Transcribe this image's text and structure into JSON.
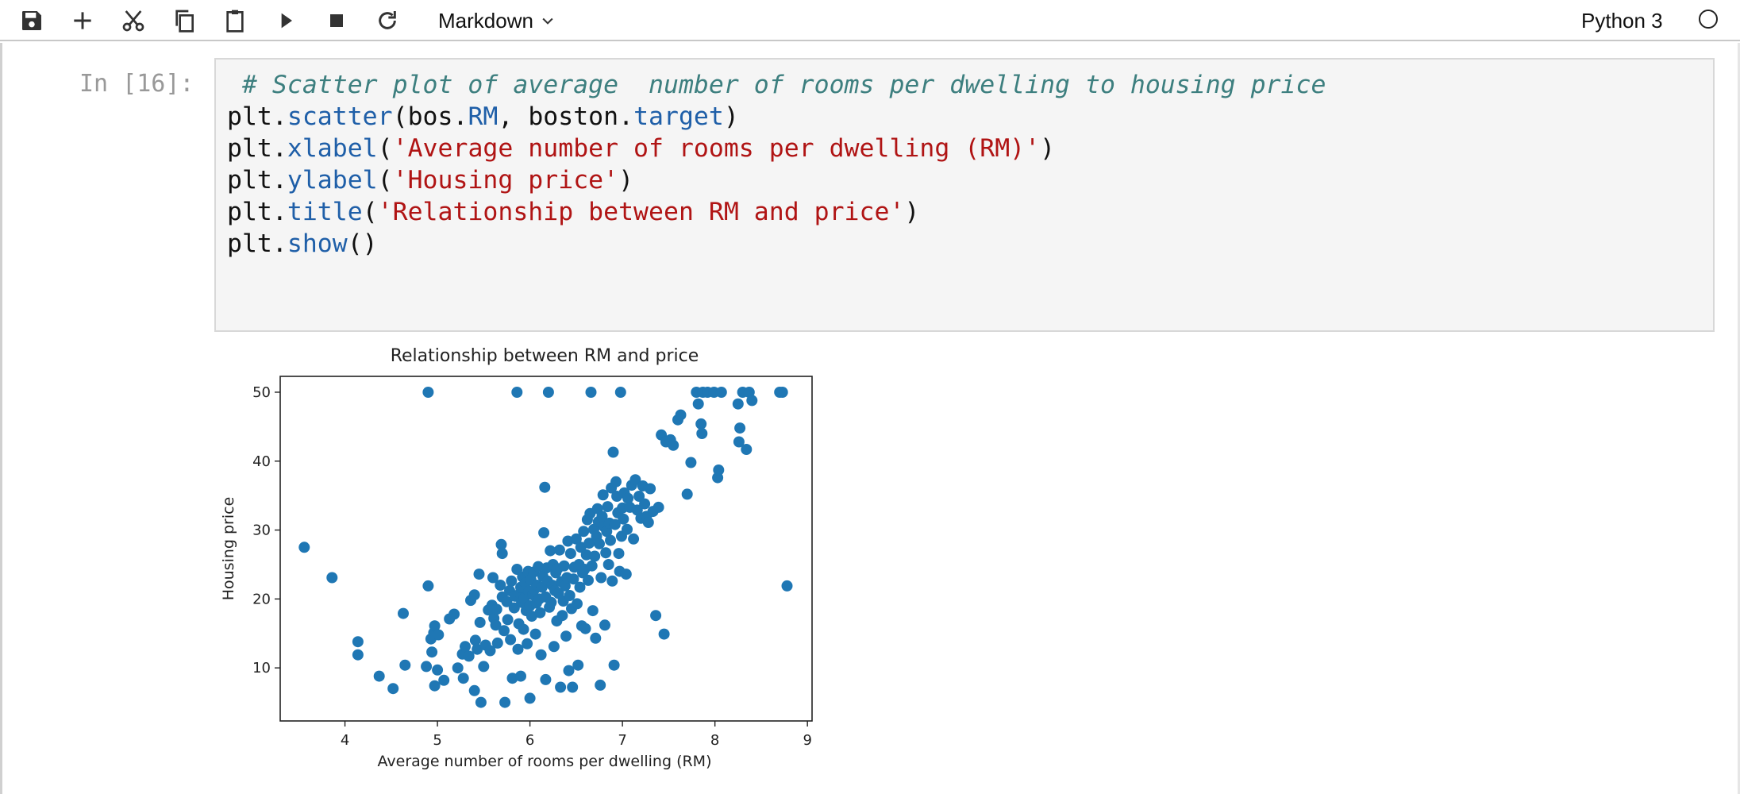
{
  "toolbar": {
    "cell_type": "Markdown",
    "kernel_name": "Python 3",
    "icons": [
      "save-icon",
      "plus-icon",
      "scissors-icon",
      "copy-icon",
      "paste-icon",
      "play-icon",
      "stop-icon",
      "restart-icon",
      "chevron-down-icon"
    ]
  },
  "cell": {
    "prompt": "In [16]:",
    "code": {
      "l1_comment": " # Scatter plot of average  number of rooms per dwelling to housing price",
      "l2_a": "plt.",
      "l2_fn": "scatter",
      "l2_b": "(bos.",
      "l2_attr": "RM",
      "l2_c": ", boston.",
      "l2_attr2": "target",
      "l2_d": ")",
      "l3_a": "plt.",
      "l3_fn": "xlabel",
      "l3_b": "(",
      "l3_str": "'Average number of rooms per dwelling (RM)'",
      "l3_c": ")",
      "l4_a": "plt.",
      "l4_fn": "ylabel",
      "l4_b": "(",
      "l4_str": "'Housing price'",
      "l4_c": ")",
      "l5_a": "plt.",
      "l5_fn": "title",
      "l5_b": "(",
      "l5_str": "'Relationship between RM and price'",
      "l5_c": ")",
      "l6_a": "plt.",
      "l6_fn": "show",
      "l6_b": "()"
    }
  },
  "chart_data": {
    "type": "scatter",
    "title": "Relationship between RM and price",
    "xlabel": "Average number of rooms per dwelling (RM)",
    "ylabel": "Housing price",
    "xlim": [
      3.3,
      9.05
    ],
    "ylim": [
      2.3,
      52.3
    ],
    "xticks": [
      4,
      5,
      6,
      7,
      8,
      9
    ],
    "yticks": [
      10,
      20,
      30,
      40,
      50
    ],
    "grid": false,
    "marker_color": "#1f77b4",
    "points": [
      [
        3.56,
        27.5
      ],
      [
        3.86,
        23.1
      ],
      [
        4.14,
        13.8
      ],
      [
        4.14,
        11.9
      ],
      [
        4.37,
        8.8
      ],
      [
        4.52,
        7.0
      ],
      [
        4.63,
        17.9
      ],
      [
        4.65,
        10.4
      ],
      [
        4.9,
        50.0
      ],
      [
        4.88,
        10.2
      ],
      [
        4.9,
        21.9
      ],
      [
        4.93,
        14.2
      ],
      [
        4.94,
        12.3
      ],
      [
        4.96,
        15.1
      ],
      [
        4.97,
        16.1
      ],
      [
        4.97,
        7.4
      ],
      [
        5.0,
        9.7
      ],
      [
        5.01,
        14.8
      ],
      [
        5.07,
        8.2
      ],
      [
        5.13,
        17.1
      ],
      [
        5.18,
        17.8
      ],
      [
        5.22,
        10.0
      ],
      [
        5.27,
        12.0
      ],
      [
        5.28,
        8.5
      ],
      [
        5.3,
        13.1
      ],
      [
        5.34,
        11.7
      ],
      [
        5.36,
        19.8
      ],
      [
        5.4,
        20.6
      ],
      [
        5.4,
        6.7
      ],
      [
        5.41,
        14.0
      ],
      [
        5.43,
        12.7
      ],
      [
        5.45,
        23.6
      ],
      [
        5.46,
        16.6
      ],
      [
        5.47,
        5.0
      ],
      [
        5.5,
        10.2
      ],
      [
        5.52,
        13.3
      ],
      [
        5.55,
        18.4
      ],
      [
        5.57,
        12.5
      ],
      [
        5.59,
        19.1
      ],
      [
        5.6,
        23.1
      ],
      [
        5.61,
        17.2
      ],
      [
        5.63,
        16.2
      ],
      [
        5.64,
        18.5
      ],
      [
        5.65,
        13.6
      ],
      [
        5.68,
        22.0
      ],
      [
        5.69,
        27.9
      ],
      [
        5.7,
        26.6
      ],
      [
        5.7,
        20.3
      ],
      [
        5.72,
        15.4
      ],
      [
        5.73,
        5.0
      ],
      [
        5.75,
        19.6
      ],
      [
        5.76,
        17.0
      ],
      [
        5.78,
        21.2
      ],
      [
        5.79,
        14.1
      ],
      [
        5.8,
        22.6
      ],
      [
        5.81,
        8.5
      ],
      [
        5.83,
        18.7
      ],
      [
        5.84,
        20.4
      ],
      [
        5.86,
        50.0
      ],
      [
        5.86,
        24.3
      ],
      [
        5.87,
        12.7
      ],
      [
        5.88,
        16.4
      ],
      [
        5.89,
        20.8
      ],
      [
        5.9,
        8.8
      ],
      [
        5.9,
        21.7
      ],
      [
        5.91,
        19.5
      ],
      [
        5.92,
        23.2
      ],
      [
        5.93,
        15.6
      ],
      [
        5.94,
        20.1
      ],
      [
        5.95,
        22.3
      ],
      [
        5.96,
        18.3
      ],
      [
        5.97,
        13.5
      ],
      [
        5.98,
        24.0
      ],
      [
        5.99,
        21.1
      ],
      [
        6.0,
        19.0
      ],
      [
        6.0,
        5.6
      ],
      [
        6.01,
        22.8
      ],
      [
        6.02,
        17.5
      ],
      [
        6.03,
        20.6
      ],
      [
        6.04,
        23.9
      ],
      [
        6.05,
        21.4
      ],
      [
        6.06,
        14.9
      ],
      [
        6.07,
        19.4
      ],
      [
        6.08,
        22.0
      ],
      [
        6.09,
        24.7
      ],
      [
        6.1,
        20.0
      ],
      [
        6.11,
        18.0
      ],
      [
        6.12,
        11.9
      ],
      [
        6.13,
        21.7
      ],
      [
        6.14,
        23.3
      ],
      [
        6.15,
        29.6
      ],
      [
        6.16,
        36.2
      ],
      [
        6.17,
        20.3
      ],
      [
        6.17,
        8.3
      ],
      [
        6.18,
        24.5
      ],
      [
        6.19,
        22.6
      ],
      [
        6.2,
        50.0
      ],
      [
        6.21,
        18.8
      ],
      [
        6.22,
        27.0
      ],
      [
        6.23,
        19.5
      ],
      [
        6.24,
        22.0
      ],
      [
        6.25,
        25.0
      ],
      [
        6.26,
        13.1
      ],
      [
        6.27,
        21.2
      ],
      [
        6.28,
        23.8
      ],
      [
        6.29,
        16.8
      ],
      [
        6.3,
        24.4
      ],
      [
        6.31,
        20.8
      ],
      [
        6.32,
        27.1
      ],
      [
        6.33,
        7.2
      ],
      [
        6.34,
        22.5
      ],
      [
        6.35,
        17.6
      ],
      [
        6.36,
        19.7
      ],
      [
        6.37,
        24.8
      ],
      [
        6.38,
        21.9
      ],
      [
        6.39,
        14.6
      ],
      [
        6.4,
        23.1
      ],
      [
        6.41,
        28.4
      ],
      [
        6.42,
        9.6
      ],
      [
        6.43,
        20.5
      ],
      [
        6.44,
        26.6
      ],
      [
        6.45,
        18.6
      ],
      [
        6.46,
        7.2
      ],
      [
        6.47,
        22.9
      ],
      [
        6.48,
        24.6
      ],
      [
        6.5,
        28.7
      ],
      [
        6.51,
        19.3
      ],
      [
        6.52,
        10.4
      ],
      [
        6.53,
        25.0
      ],
      [
        6.54,
        21.7
      ],
      [
        6.55,
        27.5
      ],
      [
        6.56,
        16.1
      ],
      [
        6.57,
        23.8
      ],
      [
        6.58,
        29.8
      ],
      [
        6.59,
        24.3
      ],
      [
        6.6,
        15.7
      ],
      [
        6.61,
        26.4
      ],
      [
        6.62,
        31.5
      ],
      [
        6.63,
        22.7
      ],
      [
        6.64,
        28.1
      ],
      [
        6.65,
        32.4
      ],
      [
        6.66,
        50.0
      ],
      [
        6.67,
        24.8
      ],
      [
        6.68,
        18.3
      ],
      [
        6.69,
        30.1
      ],
      [
        6.7,
        26.2
      ],
      [
        6.71,
        14.3
      ],
      [
        6.72,
        29.1
      ],
      [
        6.73,
        33.1
      ],
      [
        6.74,
        31.2
      ],
      [
        6.75,
        28.0
      ],
      [
        6.76,
        7.5
      ],
      [
        6.77,
        23.1
      ],
      [
        6.78,
        32.0
      ],
      [
        6.79,
        35.1
      ],
      [
        6.8,
        30.5
      ],
      [
        6.81,
        16.2
      ],
      [
        6.82,
        26.7
      ],
      [
        6.83,
        29.8
      ],
      [
        6.84,
        33.4
      ],
      [
        6.85,
        25.0
      ],
      [
        6.86,
        31.0
      ],
      [
        6.87,
        28.5
      ],
      [
        6.88,
        36.1
      ],
      [
        6.89,
        22.6
      ],
      [
        6.9,
        41.3
      ],
      [
        6.91,
        10.4
      ],
      [
        6.92,
        30.8
      ],
      [
        6.93,
        37.0
      ],
      [
        6.94,
        34.9
      ],
      [
        6.95,
        32.5
      ],
      [
        6.96,
        26.6
      ],
      [
        6.97,
        24.0
      ],
      [
        6.98,
        50.0
      ],
      [
        6.99,
        29.1
      ],
      [
        7.0,
        33.2
      ],
      [
        7.01,
        31.6
      ],
      [
        7.02,
        35.4
      ],
      [
        7.04,
        23.6
      ],
      [
        7.05,
        30.1
      ],
      [
        7.06,
        34.6
      ],
      [
        7.08,
        33.3
      ],
      [
        7.1,
        36.5
      ],
      [
        7.12,
        28.7
      ],
      [
        7.14,
        37.3
      ],
      [
        7.16,
        32.9
      ],
      [
        7.18,
        34.9
      ],
      [
        7.2,
        31.7
      ],
      [
        7.22,
        36.4
      ],
      [
        7.24,
        33.8
      ],
      [
        7.26,
        32.0
      ],
      [
        7.28,
        31.1
      ],
      [
        7.3,
        36.0
      ],
      [
        7.33,
        32.7
      ],
      [
        7.36,
        17.6
      ],
      [
        7.39,
        33.3
      ],
      [
        7.42,
        43.8
      ],
      [
        7.45,
        14.9
      ],
      [
        7.47,
        42.8
      ],
      [
        7.52,
        43.1
      ],
      [
        7.55,
        42.3
      ],
      [
        7.6,
        46.0
      ],
      [
        7.63,
        46.7
      ],
      [
        7.7,
        35.2
      ],
      [
        7.74,
        39.8
      ],
      [
        7.8,
        50.0
      ],
      [
        7.82,
        48.3
      ],
      [
        7.85,
        45.4
      ],
      [
        7.86,
        44.0
      ],
      [
        7.87,
        50.0
      ],
      [
        7.92,
        50.0
      ],
      [
        7.99,
        50.0
      ],
      [
        8.03,
        37.6
      ],
      [
        8.04,
        38.7
      ],
      [
        8.07,
        50.0
      ],
      [
        8.25,
        48.3
      ],
      [
        8.26,
        42.8
      ],
      [
        8.27,
        44.8
      ],
      [
        8.3,
        50.0
      ],
      [
        8.34,
        41.7
      ],
      [
        8.37,
        50.0
      ],
      [
        8.4,
        48.8
      ],
      [
        8.7,
        50.0
      ],
      [
        8.73,
        50.0
      ],
      [
        8.78,
        21.9
      ]
    ]
  }
}
